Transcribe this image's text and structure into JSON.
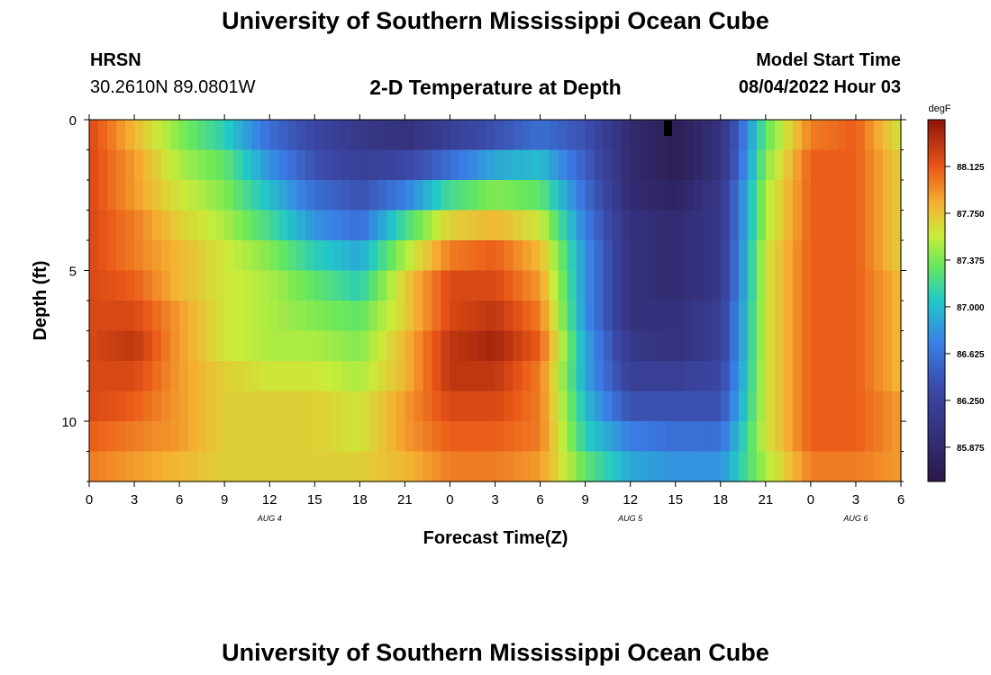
{
  "header": {
    "title": "University of Southern Mississippi Ocean Cube",
    "station": "HRSN",
    "coords": "30.2610N  89.0801W",
    "plot_title": "2-D Temperature at Depth",
    "model_label": "Model Start Time",
    "model_time": "08/04/2022 Hour 03"
  },
  "footer": {
    "title": "University of Southern Mississippi Ocean Cube"
  },
  "chart_data": {
    "type": "heatmap",
    "title": "2-D Temperature at Depth",
    "xlabel": "Forecast Time(Z)",
    "ylabel": "Depth (ft)",
    "x_range": [
      0,
      54
    ],
    "y_range": [
      0,
      12
    ],
    "x_tick_labels": [
      "0",
      "3",
      "6",
      "9",
      "12",
      "15",
      "18",
      "21",
      "0",
      "3",
      "6",
      "9",
      "12",
      "15",
      "18",
      "21",
      "0",
      "3",
      "6"
    ],
    "y_tick_labels": [
      "0",
      "5",
      "10"
    ],
    "y_tick_values": [
      0,
      5,
      10
    ],
    "date_labels": [
      {
        "text": "AUG 4",
        "hour": 12
      },
      {
        "text": "AUG 5",
        "hour": 36
      },
      {
        "text": "AUG 6",
        "hour": 51
      }
    ],
    "colorbar": {
      "unit": "degF",
      "min": 85.6,
      "max": 88.5,
      "ticks": [
        "88.125",
        "87.750",
        "87.375",
        "87.000",
        "86.625",
        "86.250",
        "85.875"
      ],
      "tick_values": [
        88.125,
        87.75,
        87.375,
        87.0,
        86.625,
        86.25,
        85.875
      ]
    },
    "depth_levels_ft": [
      0.5,
      1.5,
      2.5,
      3.5,
      4.5,
      5.5,
      6.5,
      7.5,
      8.5,
      9.5,
      10.5,
      11.5
    ],
    "profile_hours": [
      0,
      3,
      6,
      9,
      12,
      15,
      18,
      21,
      24,
      27,
      30,
      33,
      36,
      39,
      42,
      45,
      48,
      51,
      54
    ],
    "values": [
      [
        88.2,
        87.8,
        87.4,
        87.1,
        86.6,
        86.3,
        86.1,
        86.0,
        86.2,
        86.4,
        86.6,
        86.4,
        85.9,
        85.7,
        86.0,
        87.3,
        88.0,
        88.1,
        87.6
      ],
      [
        88.2,
        87.9,
        87.5,
        87.3,
        86.8,
        86.4,
        86.2,
        86.3,
        86.6,
        86.9,
        87.0,
        86.5,
        85.9,
        85.7,
        86.0,
        87.4,
        88.1,
        88.1,
        87.7
      ],
      [
        88.2,
        87.9,
        87.6,
        87.4,
        87.0,
        86.6,
        86.4,
        86.7,
        87.2,
        87.4,
        87.3,
        86.6,
        85.9,
        85.8,
        86.1,
        87.5,
        88.1,
        88.1,
        87.7
      ],
      [
        88.2,
        88.0,
        87.7,
        87.5,
        87.2,
        86.8,
        86.6,
        87.2,
        87.7,
        87.8,
        87.6,
        86.7,
        86.0,
        85.9,
        86.1,
        87.5,
        88.1,
        88.1,
        87.7
      ],
      [
        88.2,
        88.0,
        87.8,
        87.6,
        87.4,
        87.1,
        86.9,
        87.5,
        88.0,
        88.1,
        87.8,
        86.8,
        86.0,
        85.9,
        86.1,
        87.6,
        88.1,
        88.1,
        87.7
      ],
      [
        88.2,
        88.1,
        87.8,
        87.6,
        87.5,
        87.3,
        87.1,
        87.7,
        88.2,
        88.2,
        87.9,
        86.8,
        86.0,
        85.9,
        86.1,
        87.6,
        88.1,
        88.1,
        87.8
      ],
      [
        88.2,
        88.2,
        87.9,
        87.6,
        87.5,
        87.4,
        87.3,
        87.7,
        88.2,
        88.3,
        88.0,
        86.8,
        86.0,
        86.0,
        86.2,
        87.6,
        88.1,
        88.1,
        87.8
      ],
      [
        88.2,
        88.3,
        87.9,
        87.6,
        87.5,
        87.5,
        87.4,
        87.8,
        88.3,
        88.4,
        88.1,
        86.9,
        86.1,
        86.0,
        86.2,
        87.6,
        88.1,
        88.1,
        87.8
      ],
      [
        88.2,
        88.2,
        87.9,
        87.7,
        87.6,
        87.6,
        87.5,
        87.8,
        88.3,
        88.3,
        88.0,
        86.9,
        86.2,
        86.2,
        86.3,
        87.6,
        88.1,
        88.1,
        87.8
      ],
      [
        88.2,
        88.1,
        87.9,
        87.7,
        87.7,
        87.7,
        87.6,
        87.9,
        88.2,
        88.2,
        88.0,
        87.0,
        86.4,
        86.4,
        86.4,
        87.6,
        88.1,
        88.1,
        87.9
      ],
      [
        88.1,
        88.0,
        87.9,
        87.7,
        87.7,
        87.7,
        87.6,
        87.9,
        88.1,
        88.1,
        88.0,
        87.1,
        86.7,
        86.6,
        86.6,
        87.6,
        88.1,
        88.1,
        87.9
      ],
      [
        88.0,
        87.9,
        87.8,
        87.7,
        87.7,
        87.7,
        87.7,
        87.8,
        88.0,
        88.0,
        87.9,
        87.3,
        86.9,
        86.8,
        86.8,
        87.5,
        88.0,
        88.0,
        87.9
      ]
    ]
  }
}
